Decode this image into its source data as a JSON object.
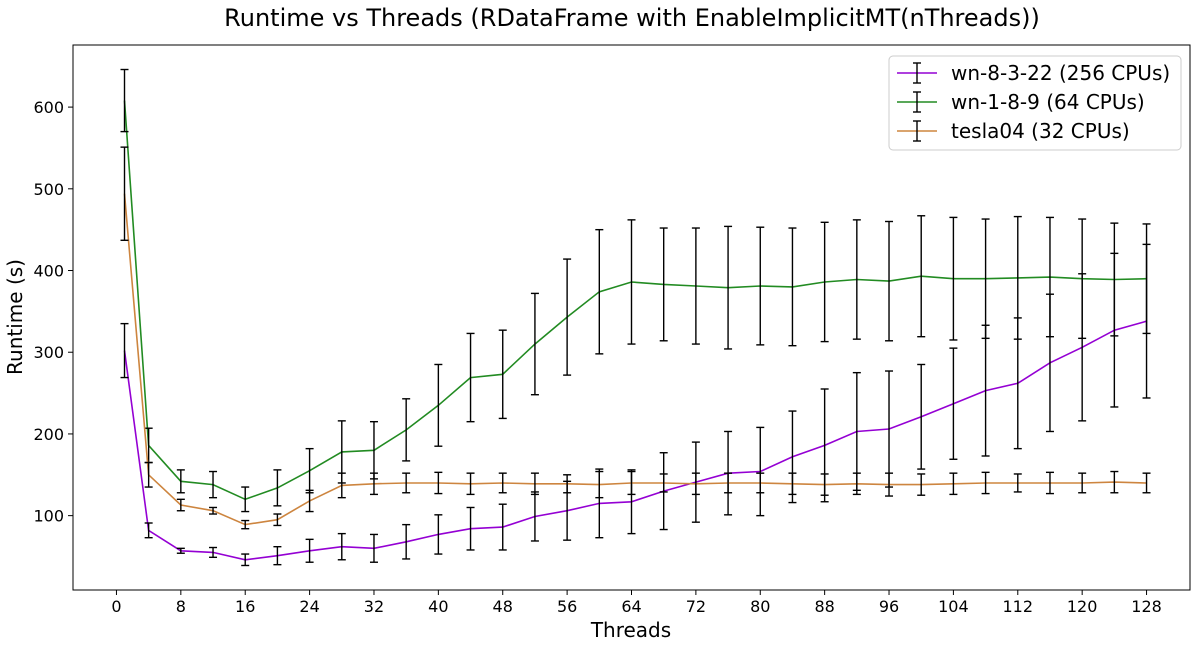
{
  "chart_data": {
    "type": "line",
    "title": "Runtime vs Threads (RDataFrame with EnableImplicitMT(nThreads))",
    "xlabel": "Threads",
    "ylabel": "Runtime (s)",
    "xlim": [
      -5.4,
      133.4
    ],
    "ylim": [
      9,
      676
    ],
    "xticks": [
      0,
      8,
      16,
      24,
      32,
      40,
      48,
      56,
      64,
      72,
      80,
      88,
      96,
      104,
      112,
      120,
      128
    ],
    "yticks": [
      100,
      200,
      300,
      400,
      500,
      600
    ],
    "grid": false,
    "legend_position": "top-right",
    "x": [
      1,
      4,
      8,
      12,
      16,
      20,
      24,
      28,
      32,
      36,
      40,
      44,
      48,
      52,
      56,
      60,
      64,
      68,
      72,
      76,
      80,
      84,
      88,
      92,
      96,
      100,
      104,
      108,
      112,
      116,
      120,
      124,
      128
    ],
    "series": [
      {
        "name": "wn-8-3-22 (256 CPUs)",
        "color": "#9400d3",
        "values": [
          302,
          82,
          57,
          55,
          46,
          51,
          57,
          62,
          60,
          68,
          77,
          84,
          86,
          99,
          106,
          115,
          117,
          130,
          141,
          152,
          154,
          172,
          186,
          203,
          206,
          221,
          237,
          253,
          262,
          287,
          306,
          327,
          338
        ],
        "errors": [
          33,
          9,
          3,
          6,
          7,
          11,
          14,
          16,
          17,
          21,
          24,
          26,
          28,
          30,
          36,
          42,
          39,
          47,
          49,
          51,
          54,
          56,
          69,
          72,
          71,
          64,
          68,
          80,
          80,
          84,
          90,
          94,
          94
        ]
      },
      {
        "name": "wn-1-8-9 (64 CPUs)",
        "color": "#228b22",
        "values": [
          608,
          186,
          142,
          138,
          120,
          134,
          155,
          178,
          180,
          205,
          235,
          269,
          273,
          310,
          343,
          374,
          386,
          383,
          381,
          379,
          381,
          380,
          386,
          389,
          387,
          393,
          390,
          390,
          391,
          392,
          390,
          389,
          390
        ],
        "errors": [
          38,
          21,
          14,
          16,
          15,
          22,
          27,
          38,
          35,
          38,
          50,
          54,
          54,
          62,
          71,
          76,
          76,
          69,
          71,
          75,
          72,
          72,
          73,
          73,
          73,
          74,
          75,
          73,
          75,
          73,
          73,
          69,
          67
        ]
      },
      {
        "name": "tesla04 (32 CPUs)",
        "color": "#cd853f",
        "values": [
          494,
          150,
          113,
          106,
          89,
          95,
          118,
          137,
          139,
          140,
          140,
          139,
          140,
          139,
          139,
          138,
          140,
          140,
          139,
          140,
          140,
          139,
          138,
          139,
          138,
          138,
          139,
          140,
          140,
          140,
          140,
          141,
          140
        ],
        "errors": [
          57,
          15,
          7,
          4,
          5,
          7,
          13,
          15,
          13,
          12,
          13,
          13,
          12,
          13,
          11,
          16,
          14,
          11,
          13,
          12,
          12,
          13,
          13,
          13,
          14,
          13,
          13,
          13,
          11,
          13,
          12,
          13,
          12
        ]
      }
    ]
  }
}
